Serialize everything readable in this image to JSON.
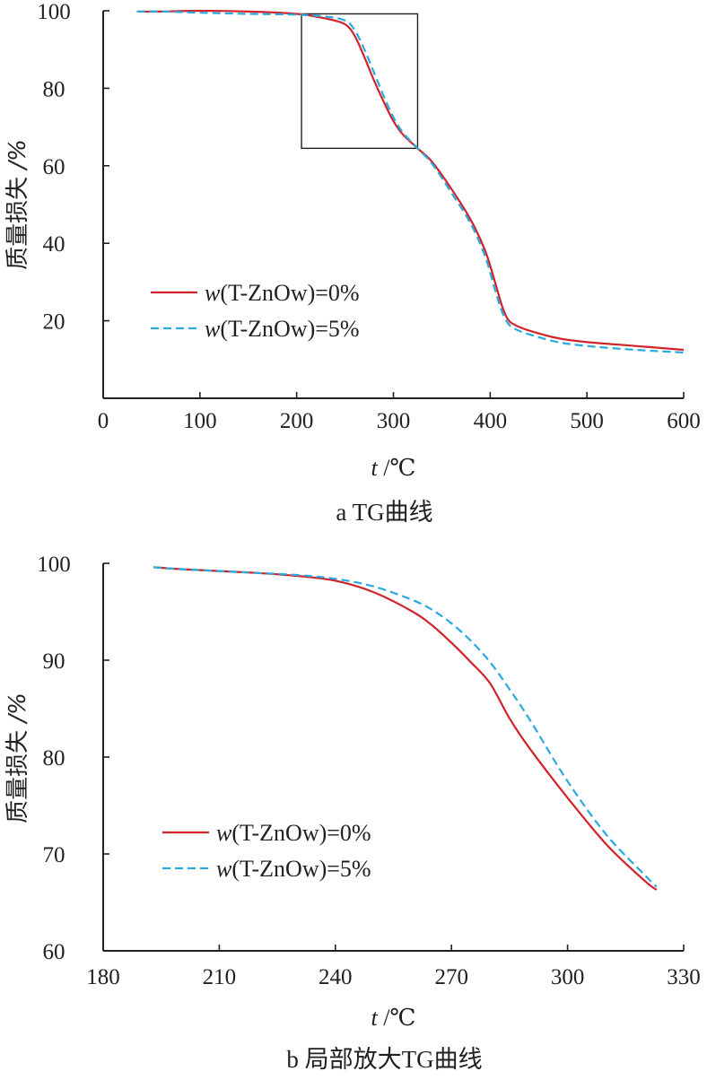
{
  "chart_data": [
    {
      "type": "line",
      "title": "",
      "caption": "a  TG曲线",
      "xlabel_var": "t",
      "xlabel_unit": "/℃",
      "ylabel_main": "质量损失",
      "ylabel_unit": "/%",
      "xlim": [
        0,
        600
      ],
      "ylim": [
        0,
        100
      ],
      "xticks": [
        0,
        100,
        200,
        300,
        400,
        500,
        600
      ],
      "xtick_labels": [
        "0",
        "100",
        "200",
        "300",
        "400",
        "500",
        "600"
      ],
      "yticks": [
        20,
        40,
        60,
        80,
        100
      ],
      "ytick_labels": [
        "20",
        "40",
        "60",
        "80",
        "100"
      ],
      "legend": [
        {
          "prefix": "w",
          "text": "(T-ZnOw)=0%"
        },
        {
          "prefix": "w",
          "text": "(T-ZnOw)=5%"
        }
      ],
      "legend_position": "lower-left",
      "zoom_box": {
        "x": [
          205,
          325
        ],
        "y": [
          64.5,
          99.2
        ]
      },
      "series": [
        {
          "name": "w(T-ZnOw)=0%",
          "color": "#d2232a",
          "dash": "solid",
          "x": [
            35,
            60,
            100,
            150,
            200,
            230,
            250,
            260,
            270,
            280,
            290,
            300,
            310,
            325,
            340,
            360,
            380,
            395,
            405,
            412,
            418,
            425,
            440,
            470,
            500,
            550,
            600
          ],
          "y": [
            99.8,
            99.8,
            100.0,
            99.8,
            99.2,
            98.0,
            96.5,
            93.5,
            88.0,
            82.0,
            76.5,
            71.5,
            68.0,
            64.5,
            61.0,
            54.0,
            46.0,
            38.0,
            30.0,
            24.0,
            20.5,
            19.0,
            17.5,
            15.5,
            14.5,
            13.5,
            12.5
          ]
        },
        {
          "name": "w(T-ZnOw)=5%",
          "color": "#29a9e0",
          "dash": "dashed",
          "x": [
            35,
            60,
            100,
            150,
            200,
            230,
            250,
            260,
            270,
            280,
            290,
            300,
            310,
            325,
            340,
            360,
            380,
            395,
            405,
            412,
            418,
            425,
            440,
            470,
            500,
            550,
            600
          ],
          "y": [
            99.8,
            99.8,
            99.5,
            99.2,
            99.0,
            98.5,
            97.5,
            95.0,
            90.0,
            84.0,
            78.0,
            72.5,
            68.5,
            64.5,
            60.5,
            53.0,
            45.0,
            36.5,
            28.0,
            22.5,
            19.5,
            18.0,
            16.5,
            14.5,
            13.5,
            12.5,
            11.8
          ]
        }
      ]
    },
    {
      "type": "line",
      "title": "",
      "caption": "b  局部放大TG曲线",
      "xlabel_var": "t",
      "xlabel_unit": "/℃",
      "ylabel_main": "质量损失",
      "ylabel_unit": "/%",
      "xlim": [
        180,
        330
      ],
      "ylim": [
        60,
        100
      ],
      "xticks": [
        180,
        210,
        240,
        270,
        300,
        330
      ],
      "xtick_labels": [
        "180",
        "210",
        "240",
        "270",
        "300",
        "330"
      ],
      "yticks": [
        60,
        70,
        80,
        90,
        100
      ],
      "ytick_labels": [
        "60",
        "70",
        "80",
        "90",
        "100"
      ],
      "legend": [
        {
          "prefix": "w",
          "text": "(T-ZnOw)=0%"
        },
        {
          "prefix": "w",
          "text": "(T-ZnOw)=5%"
        }
      ],
      "legend_position": "lower-left",
      "series": [
        {
          "name": "w(T-ZnOw)=0%",
          "color": "#d2232a",
          "dash": "solid",
          "x": [
            193,
            200,
            210,
            220,
            230,
            240,
            250,
            260,
            265,
            270,
            275,
            280,
            285,
            290,
            300,
            310,
            320,
            323
          ],
          "y": [
            99.6,
            99.4,
            99.2,
            99.0,
            98.7,
            98.2,
            97.0,
            95.0,
            93.6,
            91.8,
            89.8,
            87.6,
            84.0,
            81.0,
            75.8,
            71.0,
            67.2,
            66.3
          ]
        },
        {
          "name": "w(T-ZnOw)=5%",
          "color": "#29a9e0",
          "dash": "dashed",
          "x": [
            193,
            200,
            210,
            220,
            230,
            240,
            250,
            260,
            265,
            270,
            275,
            280,
            285,
            290,
            300,
            310,
            320,
            323
          ],
          "y": [
            99.6,
            99.4,
            99.2,
            99.0,
            98.8,
            98.4,
            97.6,
            96.2,
            95.2,
            93.8,
            92.0,
            89.8,
            87.0,
            84.0,
            77.5,
            72.0,
            67.8,
            66.6
          ]
        }
      ]
    }
  ]
}
